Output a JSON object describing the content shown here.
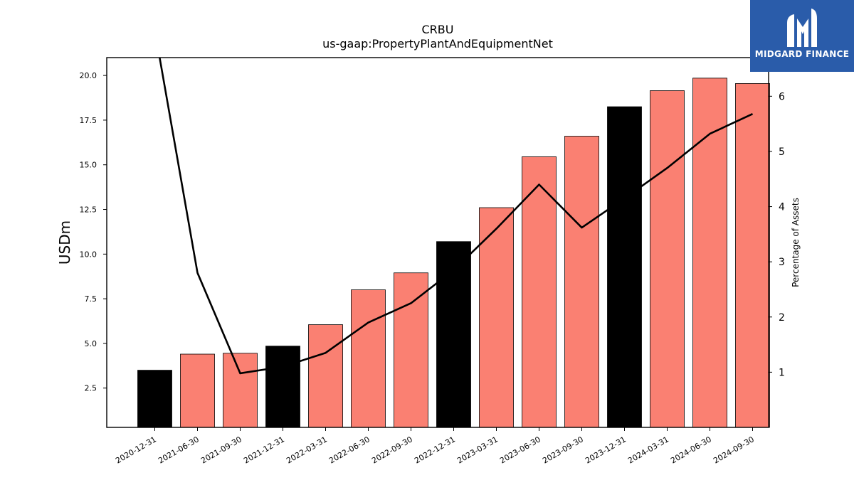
{
  "chart_data": {
    "type": "bar",
    "title": "CRBU",
    "subtitle": "us-gaap:PropertyPlantAndEquipmentNet",
    "ylabel": "USDm",
    "y2label": "Percentage of Assets",
    "ylim": [
      0.3,
      21.0
    ],
    "y2lim": [
      0.0,
      6.7
    ],
    "yticks": [
      "2.5",
      "5.0",
      "7.5",
      "10.0",
      "12.5",
      "15.0",
      "17.5",
      "20.0"
    ],
    "y2ticks": [
      "1",
      "2",
      "3",
      "4",
      "5",
      "6"
    ],
    "categories": [
      "2020-12-31",
      "2021-06-30",
      "2021-09-30",
      "2021-12-31",
      "2022-03-31",
      "2022-06-30",
      "2022-09-30",
      "2022-12-31",
      "2023-03-31",
      "2023-06-30",
      "2023-09-30",
      "2023-12-31",
      "2024-03-31",
      "2024-06-30",
      "2024-09-30"
    ],
    "values": [
      3.5,
      4.4,
      4.45,
      4.85,
      6.05,
      8.0,
      8.95,
      10.7,
      12.6,
      15.45,
      16.6,
      18.25,
      19.15,
      19.85,
      19.55
    ],
    "bar_colors": [
      "#000000",
      "#fa8072",
      "#fa8072",
      "#000000",
      "#fa8072",
      "#fa8072",
      "#fa8072",
      "#000000",
      "#fa8072",
      "#fa8072",
      "#fa8072",
      "#000000",
      "#fa8072",
      "#fa8072",
      "#fa8072"
    ],
    "line": {
      "axis": "right",
      "color": "#000000",
      "values": [
        7.2,
        2.8,
        0.98,
        1.1,
        1.35,
        1.9,
        2.25,
        2.85,
        3.6,
        4.4,
        3.62,
        4.15,
        4.7,
        5.32,
        5.68
      ]
    },
    "grid": false,
    "legend": "none"
  },
  "logo": {
    "text": "MIDGARD FINANCE",
    "bg_color": "#2a5caa"
  }
}
